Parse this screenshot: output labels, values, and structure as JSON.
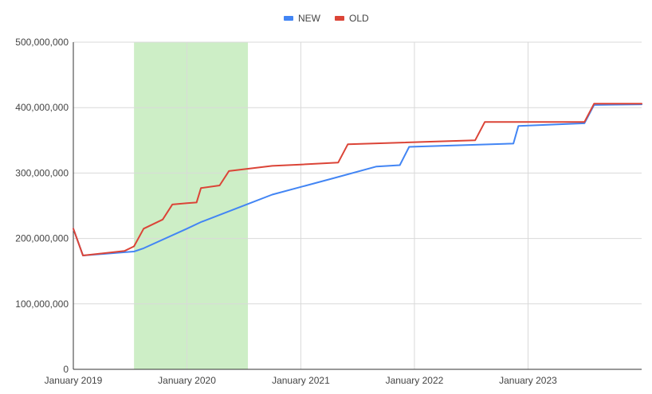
{
  "chart_data": {
    "type": "line",
    "title": "",
    "xlabel": "",
    "ylabel": "",
    "ylim": [
      0,
      500000000
    ],
    "xlim": [
      "2019-01-01",
      "2024-01-01"
    ],
    "grid": true,
    "legend_position": "top",
    "y_ticks": [
      "0",
      "100,000,000",
      "200,000,000",
      "300,000,000",
      "400,000,000",
      "500,000,000"
    ],
    "x_ticks": [
      "January 2019",
      "January 2020",
      "January 2021",
      "January 2022",
      "January 2023"
    ],
    "highlight_region": {
      "x_start": "2019-07-15",
      "x_end": "2020-07-15",
      "color": "#cdeec6"
    },
    "series": [
      {
        "name": "NEW",
        "color": "#4285f4",
        "points": [
          [
            "2019-01-01",
            215000000
          ],
          [
            "2019-02-01",
            174000000
          ],
          [
            "2019-06-15",
            179000000
          ],
          [
            "2019-07-15",
            180000000
          ],
          [
            "2019-08-15",
            185000000
          ],
          [
            "2020-01-01",
            215000000
          ],
          [
            "2020-02-15",
            225000000
          ],
          [
            "2020-10-01",
            267000000
          ],
          [
            "2021-04-15",
            292000000
          ],
          [
            "2021-09-01",
            310000000
          ],
          [
            "2021-11-15",
            312000000
          ],
          [
            "2021-12-15",
            340000000
          ],
          [
            "2022-11-15",
            345000000
          ],
          [
            "2022-12-01",
            372000000
          ],
          [
            "2023-07-01",
            376000000
          ],
          [
            "2023-08-01",
            404000000
          ],
          [
            "2024-01-01",
            405000000
          ]
        ]
      },
      {
        "name": "OLD",
        "color": "#db4437",
        "points": [
          [
            "2019-01-01",
            215000000
          ],
          [
            "2019-02-01",
            174000000
          ],
          [
            "2019-06-15",
            181000000
          ],
          [
            "2019-07-15",
            188000000
          ],
          [
            "2019-08-15",
            215000000
          ],
          [
            "2019-10-15",
            229000000
          ],
          [
            "2019-11-15",
            252000000
          ],
          [
            "2020-01-01",
            254000000
          ],
          [
            "2020-02-01",
            255000000
          ],
          [
            "2020-02-15",
            277000000
          ],
          [
            "2020-04-15",
            281000000
          ],
          [
            "2020-05-15",
            303000000
          ],
          [
            "2020-10-01",
            311000000
          ],
          [
            "2021-01-01",
            313000000
          ],
          [
            "2021-05-01",
            316000000
          ],
          [
            "2021-06-01",
            344000000
          ],
          [
            "2022-07-15",
            350000000
          ],
          [
            "2022-08-15",
            378000000
          ],
          [
            "2023-07-01",
            378000000
          ],
          [
            "2023-08-01",
            406000000
          ],
          [
            "2024-01-01",
            406000000
          ]
        ]
      }
    ]
  }
}
